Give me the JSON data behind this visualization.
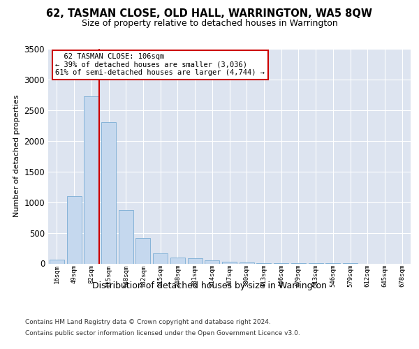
{
  "title": "62, TASMAN CLOSE, OLD HALL, WARRINGTON, WA5 8QW",
  "subtitle": "Size of property relative to detached houses in Warrington",
  "xlabel": "Distribution of detached houses by size in Warrington",
  "ylabel": "Number of detached properties",
  "bar_color": "#c5d8ee",
  "bar_edge_color": "#7aadd4",
  "background_color": "#dde4f0",
  "grid_color": "#ffffff",
  "annotation_box_color": "#ffffff",
  "annotation_border_color": "#cc0000",
  "vline_color": "#cc0000",
  "bins": [
    "16sqm",
    "49sqm",
    "82sqm",
    "115sqm",
    "148sqm",
    "182sqm",
    "215sqm",
    "248sqm",
    "281sqm",
    "314sqm",
    "347sqm",
    "380sqm",
    "413sqm",
    "446sqm",
    "479sqm",
    "513sqm",
    "546sqm",
    "579sqm",
    "612sqm",
    "645sqm",
    "678sqm"
  ],
  "values": [
    60,
    1100,
    2730,
    2300,
    870,
    410,
    170,
    100,
    80,
    50,
    25,
    15,
    8,
    5,
    3,
    2,
    1,
    1,
    0,
    0,
    0
  ],
  "property_label": "62 TASMAN CLOSE: 106sqm",
  "pct_smaller": 39,
  "num_smaller": 3036,
  "pct_larger_semi": 61,
  "num_larger_semi": 4744,
  "vline_x_idx": 2.45,
  "ylim": [
    0,
    3500
  ],
  "yticks": [
    0,
    500,
    1000,
    1500,
    2000,
    2500,
    3000,
    3500
  ],
  "footer_line1": "Contains HM Land Registry data © Crown copyright and database right 2024.",
  "footer_line2": "Contains public sector information licensed under the Open Government Licence v3.0."
}
